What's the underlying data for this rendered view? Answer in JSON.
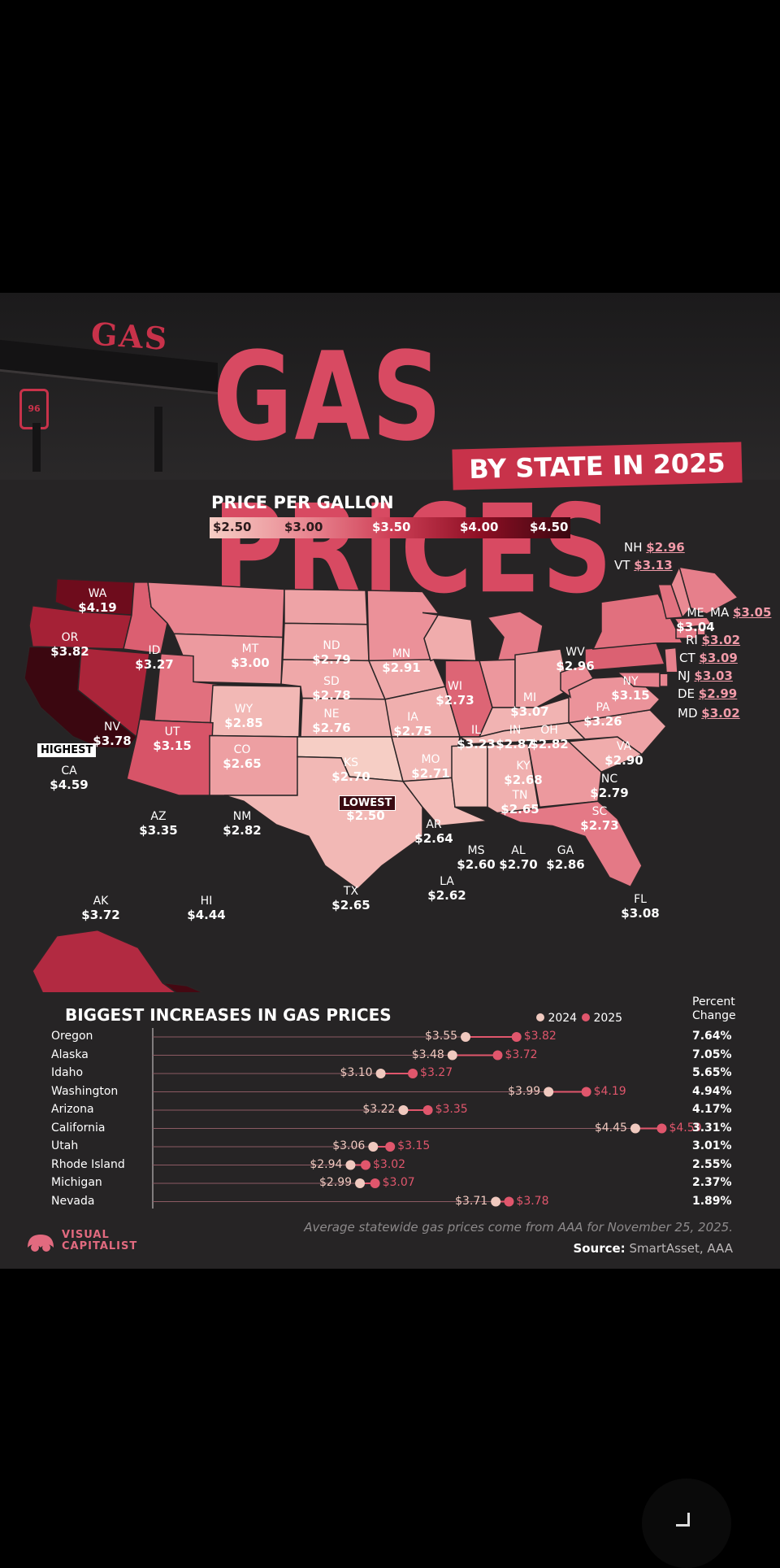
{
  "title": "GAS PRICES",
  "subtitle": "BY STATE IN 2025",
  "gas_sign_text": "GAS",
  "pump_sign_text": "96",
  "legend": {
    "title": "PRICE PER GALLON",
    "ticks": [
      "$2.50",
      "$3.00",
      "$3.50",
      "$4.00",
      "$4.50"
    ],
    "colors": [
      "#f6cec5",
      "#e8848f",
      "#cf4057",
      "#8e0f24",
      "#3b0710"
    ]
  },
  "callouts": {
    "highest": "HIGHEST",
    "lowest": "LOWEST"
  },
  "states": {
    "WA": {
      "code": "WA",
      "price": "$4.19"
    },
    "OR": {
      "code": "OR",
      "price": "$3.82"
    },
    "CA": {
      "code": "CA",
      "price": "$4.59"
    },
    "NV": {
      "code": "NV",
      "price": "$3.78"
    },
    "ID": {
      "code": "ID",
      "price": "$3.27"
    },
    "MT": {
      "code": "MT",
      "price": "$3.00"
    },
    "WY": {
      "code": "WY",
      "price": "$2.85"
    },
    "UT": {
      "code": "UT",
      "price": "$3.15"
    },
    "CO": {
      "code": "CO",
      "price": "$2.65"
    },
    "AZ": {
      "code": "AZ",
      "price": "$3.35"
    },
    "NM": {
      "code": "NM",
      "price": "$2.82"
    },
    "ND": {
      "code": "ND",
      "price": "$2.79"
    },
    "SD": {
      "code": "SD",
      "price": "$2.78"
    },
    "NE": {
      "code": "NE",
      "price": "$2.76"
    },
    "KS": {
      "code": "KS",
      "price": "$2.70"
    },
    "OK": {
      "code": "OK",
      "price": "$2.50"
    },
    "TX": {
      "code": "TX",
      "price": "$2.65"
    },
    "MN": {
      "code": "MN",
      "price": "$2.91"
    },
    "IA": {
      "code": "IA",
      "price": "$2.75"
    },
    "MO": {
      "code": "MO",
      "price": "$2.71"
    },
    "AR": {
      "code": "AR",
      "price": "$2.64"
    },
    "LA": {
      "code": "LA",
      "price": "$2.62"
    },
    "WI": {
      "code": "WI",
      "price": "$2.73"
    },
    "IL": {
      "code": "IL",
      "price": "$3.23"
    },
    "MI": {
      "code": "MI",
      "price": "$3.07"
    },
    "IN": {
      "code": "IN",
      "price": "$2.87"
    },
    "OH": {
      "code": "OH",
      "price": "$2.82"
    },
    "KY": {
      "code": "KY",
      "price": "$2.68"
    },
    "TN": {
      "code": "TN",
      "price": "$2.65"
    },
    "MS": {
      "code": "MS",
      "price": "$2.60"
    },
    "AL": {
      "code": "AL",
      "price": "$2.70"
    },
    "GA": {
      "code": "GA",
      "price": "$2.86"
    },
    "FL": {
      "code": "FL",
      "price": "$3.08"
    },
    "SC": {
      "code": "SC",
      "price": "$2.73"
    },
    "NC": {
      "code": "NC",
      "price": "$2.79"
    },
    "VA": {
      "code": "VA",
      "price": "$2.90"
    },
    "WV": {
      "code": "WV",
      "price": "$2.96"
    },
    "PA": {
      "code": "PA",
      "price": "$3.26"
    },
    "NY": {
      "code": "NY",
      "price": "$3.15"
    },
    "ME": {
      "code": "ME",
      "price": "$3.04"
    },
    "NH": {
      "code": "NH",
      "price": "$2.96"
    },
    "VT": {
      "code": "VT",
      "price": "$3.13"
    },
    "MA": {
      "code": "MA",
      "price": "$3.05"
    },
    "RI": {
      "code": "RI",
      "price": "$3.02"
    },
    "CT": {
      "code": "CT",
      "price": "$3.09"
    },
    "NJ": {
      "code": "NJ",
      "price": "$3.03"
    },
    "DE": {
      "code": "DE",
      "price": "$2.99"
    },
    "MD": {
      "code": "MD",
      "price": "$3.02"
    },
    "AK": {
      "code": "AK",
      "price": "$3.72"
    },
    "HI": {
      "code": "HI",
      "price": "$4.44"
    }
  },
  "increases": {
    "title": "BIGGEST INCREASES IN GAS PRICES",
    "legend_2024": "2024",
    "legend_2025": "2025",
    "pct_header_line1": "Percent",
    "pct_header_line2": "Change",
    "note": "Average statewide gas prices come from AAA for November 25, 2025.",
    "source_label": "Source:",
    "source_text": "SmartAsset, AAA"
  },
  "brand": {
    "line1": "VISUAL",
    "line2": "CAPITALIST"
  },
  "chart_data": [
    {
      "type": "heatmap",
      "title": "PRICE PER GALLON",
      "color_scale": [
        2.5,
        4.5
      ],
      "values": {
        "WA": 4.19,
        "OR": 3.82,
        "CA": 4.59,
        "NV": 3.78,
        "ID": 3.27,
        "MT": 3.0,
        "WY": 2.85,
        "UT": 3.15,
        "CO": 2.65,
        "AZ": 3.35,
        "NM": 2.82,
        "ND": 2.79,
        "SD": 2.78,
        "NE": 2.76,
        "KS": 2.7,
        "OK": 2.5,
        "TX": 2.65,
        "MN": 2.91,
        "IA": 2.75,
        "MO": 2.71,
        "AR": 2.64,
        "LA": 2.62,
        "WI": 2.73,
        "IL": 3.23,
        "MI": 3.07,
        "IN": 2.87,
        "OH": 2.82,
        "KY": 2.68,
        "TN": 2.65,
        "MS": 2.6,
        "AL": 2.7,
        "GA": 2.86,
        "FL": 3.08,
        "SC": 2.73,
        "NC": 2.79,
        "VA": 2.9,
        "WV": 2.96,
        "PA": 3.26,
        "NY": 3.15,
        "ME": 3.04,
        "NH": 2.96,
        "VT": 3.13,
        "MA": 3.05,
        "RI": 3.02,
        "CT": 3.09,
        "NJ": 3.03,
        "DE": 2.99,
        "MD": 3.02,
        "AK": 3.72,
        "HI": 4.44
      }
    },
    {
      "type": "scatter",
      "title": "BIGGEST INCREASES IN GAS PRICES",
      "categories": [
        "Oregon",
        "Alaska",
        "Idaho",
        "Washington",
        "Arizona",
        "California",
        "Utah",
        "Rhode Island",
        "Michigan",
        "Nevada"
      ],
      "series": [
        {
          "name": "2024",
          "values": [
            3.55,
            3.48,
            3.1,
            3.99,
            3.22,
            4.45,
            3.06,
            2.94,
            2.99,
            3.71
          ],
          "labels": [
            "$3.55",
            "$3.48",
            "$3.10",
            "$3.99",
            "$3.22",
            "$4.45",
            "$3.06",
            "$2.94",
            "$2.99",
            "$3.71"
          ]
        },
        {
          "name": "2025",
          "values": [
            3.82,
            3.72,
            3.27,
            4.19,
            3.35,
            4.59,
            3.15,
            3.02,
            3.07,
            3.78
          ],
          "labels": [
            "$3.82",
            "$3.72",
            "$3.27",
            "$4.19",
            "$3.35",
            "$4.59",
            "$3.15",
            "$3.02",
            "$3.07",
            "$3.78"
          ]
        }
      ],
      "percent_change": [
        "7.64%",
        "7.05%",
        "5.65%",
        "4.94%",
        "4.17%",
        "3.31%",
        "3.01%",
        "2.55%",
        "2.37%",
        "1.89%"
      ],
      "colors": {
        "2024": "#f0c9bf",
        "2025": "#e0566c"
      }
    }
  ]
}
